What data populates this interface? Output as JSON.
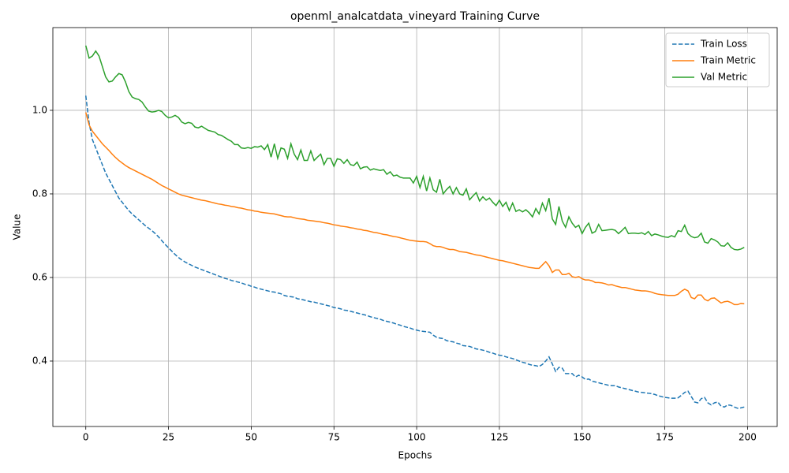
{
  "chart_data": {
    "type": "line",
    "title": "openml_analcatdata_vineyard Training Curve",
    "xlabel": "Epochs",
    "ylabel": "Value",
    "x": [
      0,
      1,
      2,
      3,
      4,
      5,
      6,
      7,
      8,
      9,
      10,
      11,
      12,
      13,
      14,
      15,
      16,
      17,
      18,
      19,
      20,
      21,
      22,
      23,
      24,
      25,
      26,
      27,
      28,
      29,
      30,
      31,
      32,
      33,
      34,
      35,
      36,
      37,
      38,
      39,
      40,
      41,
      42,
      43,
      44,
      45,
      46,
      47,
      48,
      49,
      50,
      51,
      52,
      53,
      54,
      55,
      56,
      57,
      58,
      59,
      60,
      61,
      62,
      63,
      64,
      65,
      66,
      67,
      68,
      69,
      70,
      71,
      72,
      73,
      74,
      75,
      76,
      77,
      78,
      79,
      80,
      81,
      82,
      83,
      84,
      85,
      86,
      87,
      88,
      89,
      90,
      91,
      92,
      93,
      94,
      95,
      96,
      97,
      98,
      99,
      100,
      101,
      102,
      103,
      104,
      105,
      106,
      107,
      108,
      109,
      110,
      111,
      112,
      113,
      114,
      115,
      116,
      117,
      118,
      119,
      120,
      121,
      122,
      123,
      124,
      125,
      126,
      127,
      128,
      129,
      130,
      131,
      132,
      133,
      134,
      135,
      136,
      137,
      138,
      139,
      140,
      141,
      142,
      143,
      144,
      145,
      146,
      147,
      148,
      149,
      150,
      151,
      152,
      153,
      154,
      155,
      156,
      157,
      158,
      159,
      160,
      161,
      162,
      163,
      164,
      165,
      166,
      167,
      168,
      169,
      170,
      171,
      172,
      173,
      174,
      175,
      176,
      177,
      178,
      179,
      180,
      181,
      182,
      183,
      184,
      185,
      186,
      187,
      188,
      189,
      190,
      191,
      192,
      193,
      194,
      195,
      196,
      197,
      198,
      199
    ],
    "series": [
      {
        "name": "Train Loss",
        "color": "#1f77b4",
        "linestyle": "dashed",
        "values": [
          1.035,
          0.97,
          0.93,
          0.91,
          0.89,
          0.87,
          0.85,
          0.835,
          0.82,
          0.805,
          0.79,
          0.78,
          0.77,
          0.76,
          0.752,
          0.745,
          0.738,
          0.731,
          0.724,
          0.718,
          0.712,
          0.705,
          0.697,
          0.688,
          0.679,
          0.671,
          0.663,
          0.655,
          0.648,
          0.642,
          0.637,
          0.633,
          0.629,
          0.625,
          0.622,
          0.619,
          0.616,
          0.613,
          0.61,
          0.607,
          0.604,
          0.601,
          0.598,
          0.596,
          0.593,
          0.591,
          0.589,
          0.587,
          0.584,
          0.582,
          0.579,
          0.577,
          0.574,
          0.572,
          0.57,
          0.568,
          0.566,
          0.565,
          0.563,
          0.561,
          0.557,
          0.555,
          0.554,
          0.553,
          0.549,
          0.548,
          0.546,
          0.544,
          0.542,
          0.541,
          0.539,
          0.537,
          0.535,
          0.533,
          0.531,
          0.528,
          0.527,
          0.525,
          0.522,
          0.521,
          0.519,
          0.517,
          0.515,
          0.513,
          0.511,
          0.509,
          0.506,
          0.504,
          0.502,
          0.5,
          0.497,
          0.495,
          0.493,
          0.491,
          0.488,
          0.486,
          0.483,
          0.481,
          0.479,
          0.476,
          0.474,
          0.472,
          0.471,
          0.47,
          0.469,
          0.462,
          0.457,
          0.455,
          0.454,
          0.449,
          0.447,
          0.446,
          0.443,
          0.441,
          0.437,
          0.436,
          0.435,
          0.432,
          0.429,
          0.428,
          0.426,
          0.424,
          0.421,
          0.419,
          0.416,
          0.414,
          0.413,
          0.41,
          0.408,
          0.406,
          0.403,
          0.4,
          0.397,
          0.395,
          0.392,
          0.39,
          0.389,
          0.387,
          0.392,
          0.4,
          0.41,
          0.393,
          0.375,
          0.385,
          0.383,
          0.37,
          0.37,
          0.37,
          0.362,
          0.366,
          0.362,
          0.356,
          0.357,
          0.352,
          0.35,
          0.348,
          0.346,
          0.344,
          0.342,
          0.341,
          0.341,
          0.338,
          0.336,
          0.334,
          0.332,
          0.33,
          0.328,
          0.326,
          0.325,
          0.324,
          0.323,
          0.322,
          0.32,
          0.317,
          0.315,
          0.313,
          0.312,
          0.311,
          0.311,
          0.312,
          0.318,
          0.325,
          0.328,
          0.315,
          0.302,
          0.3,
          0.31,
          0.313,
          0.3,
          0.295,
          0.3,
          0.302,
          0.292,
          0.29,
          0.295,
          0.294,
          0.29,
          0.287,
          0.288,
          0.29
        ]
      },
      {
        "name": "Train Metric",
        "color": "#ff7f0e",
        "linestyle": "solid",
        "values": [
          0.995,
          0.965,
          0.95,
          0.94,
          0.93,
          0.92,
          0.912,
          0.904,
          0.895,
          0.887,
          0.88,
          0.874,
          0.868,
          0.863,
          0.859,
          0.855,
          0.851,
          0.847,
          0.843,
          0.839,
          0.835,
          0.83,
          0.825,
          0.82,
          0.816,
          0.812,
          0.808,
          0.804,
          0.8,
          0.797,
          0.795,
          0.793,
          0.791,
          0.789,
          0.787,
          0.785,
          0.784,
          0.782,
          0.78,
          0.778,
          0.776,
          0.775,
          0.773,
          0.772,
          0.77,
          0.769,
          0.767,
          0.766,
          0.764,
          0.762,
          0.761,
          0.759,
          0.758,
          0.756,
          0.755,
          0.754,
          0.753,
          0.752,
          0.75,
          0.748,
          0.746,
          0.745,
          0.745,
          0.743,
          0.741,
          0.74,
          0.739,
          0.737,
          0.736,
          0.735,
          0.734,
          0.733,
          0.731,
          0.73,
          0.728,
          0.726,
          0.725,
          0.723,
          0.722,
          0.721,
          0.719,
          0.718,
          0.716,
          0.715,
          0.713,
          0.712,
          0.71,
          0.708,
          0.707,
          0.705,
          0.703,
          0.702,
          0.7,
          0.698,
          0.697,
          0.695,
          0.693,
          0.691,
          0.689,
          0.688,
          0.687,
          0.686,
          0.686,
          0.685,
          0.681,
          0.676,
          0.674,
          0.674,
          0.672,
          0.669,
          0.667,
          0.667,
          0.665,
          0.662,
          0.661,
          0.66,
          0.658,
          0.656,
          0.654,
          0.653,
          0.651,
          0.649,
          0.647,
          0.645,
          0.643,
          0.641,
          0.64,
          0.638,
          0.636,
          0.634,
          0.632,
          0.63,
          0.628,
          0.626,
          0.624,
          0.623,
          0.622,
          0.622,
          0.63,
          0.638,
          0.628,
          0.612,
          0.618,
          0.618,
          0.607,
          0.607,
          0.61,
          0.602,
          0.6,
          0.602,
          0.597,
          0.594,
          0.594,
          0.592,
          0.588,
          0.588,
          0.587,
          0.585,
          0.582,
          0.583,
          0.58,
          0.578,
          0.576,
          0.576,
          0.574,
          0.572,
          0.57,
          0.569,
          0.568,
          0.568,
          0.567,
          0.565,
          0.562,
          0.56,
          0.559,
          0.558,
          0.557,
          0.557,
          0.557,
          0.56,
          0.567,
          0.572,
          0.568,
          0.552,
          0.549,
          0.558,
          0.558,
          0.548,
          0.544,
          0.55,
          0.551,
          0.545,
          0.539,
          0.542,
          0.543,
          0.54,
          0.535,
          0.535,
          0.538,
          0.537
        ]
      },
      {
        "name": "Val Metric",
        "color": "#2ca02c",
        "linestyle": "solid",
        "values": [
          1.155,
          1.125,
          1.13,
          1.142,
          1.13,
          1.105,
          1.08,
          1.068,
          1.07,
          1.08,
          1.088,
          1.085,
          1.068,
          1.045,
          1.032,
          1.028,
          1.026,
          1.02,
          1.008,
          0.998,
          0.996,
          0.997,
          1.0,
          0.997,
          0.988,
          0.982,
          0.984,
          0.988,
          0.983,
          0.972,
          0.968,
          0.971,
          0.969,
          0.96,
          0.958,
          0.962,
          0.957,
          0.952,
          0.95,
          0.948,
          0.942,
          0.94,
          0.935,
          0.93,
          0.926,
          0.918,
          0.918,
          0.91,
          0.909,
          0.911,
          0.909,
          0.913,
          0.912,
          0.915,
          0.906,
          0.918,
          0.888,
          0.92,
          0.885,
          0.91,
          0.907,
          0.885,
          0.92,
          0.895,
          0.882,
          0.905,
          0.88,
          0.88,
          0.903,
          0.88,
          0.888,
          0.895,
          0.87,
          0.885,
          0.885,
          0.866,
          0.884,
          0.882,
          0.873,
          0.882,
          0.87,
          0.868,
          0.876,
          0.86,
          0.864,
          0.865,
          0.857,
          0.86,
          0.858,
          0.856,
          0.858,
          0.847,
          0.853,
          0.843,
          0.845,
          0.84,
          0.838,
          0.838,
          0.838,
          0.826,
          0.842,
          0.815,
          0.842,
          0.807,
          0.838,
          0.81,
          0.804,
          0.835,
          0.8,
          0.81,
          0.818,
          0.8,
          0.815,
          0.8,
          0.797,
          0.812,
          0.786,
          0.795,
          0.803,
          0.783,
          0.793,
          0.785,
          0.79,
          0.78,
          0.772,
          0.785,
          0.77,
          0.78,
          0.76,
          0.778,
          0.758,
          0.762,
          0.757,
          0.762,
          0.755,
          0.745,
          0.765,
          0.752,
          0.778,
          0.76,
          0.79,
          0.74,
          0.727,
          0.77,
          0.735,
          0.72,
          0.745,
          0.73,
          0.72,
          0.725,
          0.705,
          0.72,
          0.73,
          0.706,
          0.71,
          0.727,
          0.712,
          0.713,
          0.714,
          0.715,
          0.713,
          0.705,
          0.712,
          0.72,
          0.705,
          0.706,
          0.706,
          0.705,
          0.707,
          0.703,
          0.71,
          0.7,
          0.704,
          0.702,
          0.699,
          0.697,
          0.696,
          0.7,
          0.697,
          0.712,
          0.71,
          0.725,
          0.705,
          0.698,
          0.695,
          0.697,
          0.706,
          0.685,
          0.682,
          0.693,
          0.69,
          0.685,
          0.676,
          0.675,
          0.683,
          0.672,
          0.667,
          0.666,
          0.668,
          0.672
        ]
      }
    ],
    "xlim": [
      -9.95,
      208.95
    ],
    "ylim": [
      0.2434,
      1.198
    ],
    "xticks": [
      0,
      25,
      50,
      75,
      100,
      125,
      150,
      175,
      200
    ],
    "yticks": [
      0.4,
      0.6,
      0.8,
      {
        "value": 1,
        "label": "1.0"
      }
    ],
    "grid": true,
    "legend": "upper right"
  }
}
